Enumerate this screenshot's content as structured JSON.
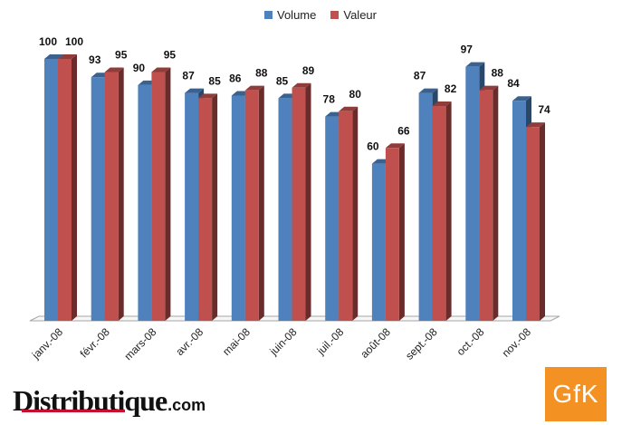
{
  "chart_data": {
    "type": "bar",
    "categories": [
      "janv.-08",
      "févr.-08",
      "mars-08",
      "avr.-08",
      "mai-08",
      "juin-08",
      "juil.-08",
      "août-08",
      "sept.-08",
      "oct.-08",
      "nov.-08"
    ],
    "series": [
      {
        "name": "Volume",
        "color": "#4f81bd",
        "values": [
          100,
          93,
          90,
          87,
          86,
          85,
          78,
          60,
          87,
          97,
          84
        ]
      },
      {
        "name": "Valeur",
        "color": "#c0504d",
        "values": [
          100,
          95,
          95,
          85,
          88,
          89,
          80,
          66,
          82,
          88,
          74
        ]
      }
    ],
    "ylim": [
      0,
      100
    ],
    "grid": false,
    "legend_position": "top",
    "style": "3d-clustered-column"
  },
  "branding": {
    "publisher_main": "Distributique",
    "publisher_tld": ".com",
    "source_logo": "GfK"
  }
}
